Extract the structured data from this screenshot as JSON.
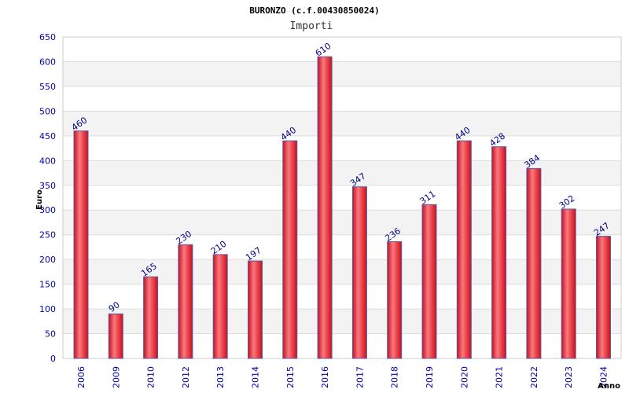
{
  "chart_data": {
    "type": "bar",
    "title": "BURONZO (c.f.00430850024)",
    "subtitle": "Importi",
    "xlabel": "Anno",
    "ylabel": "Euro",
    "ylim": [
      0,
      650
    ],
    "yticks": [
      0,
      50,
      100,
      150,
      200,
      250,
      300,
      350,
      400,
      450,
      500,
      550,
      600,
      650
    ],
    "categories": [
      "2006",
      "2009",
      "2010",
      "2012",
      "2013",
      "2014",
      "2015",
      "2016",
      "2017",
      "2018",
      "2019",
      "2020",
      "2021",
      "2022",
      "2023",
      "2024"
    ],
    "values": [
      460,
      90,
      165,
      230,
      210,
      197,
      440,
      610,
      347,
      236,
      311,
      440,
      428,
      384,
      302,
      247
    ],
    "grid": true,
    "bar_color": "#e8202a",
    "bar_edge_color": "#5a5aa8",
    "band_color": "#f3f3f3"
  }
}
